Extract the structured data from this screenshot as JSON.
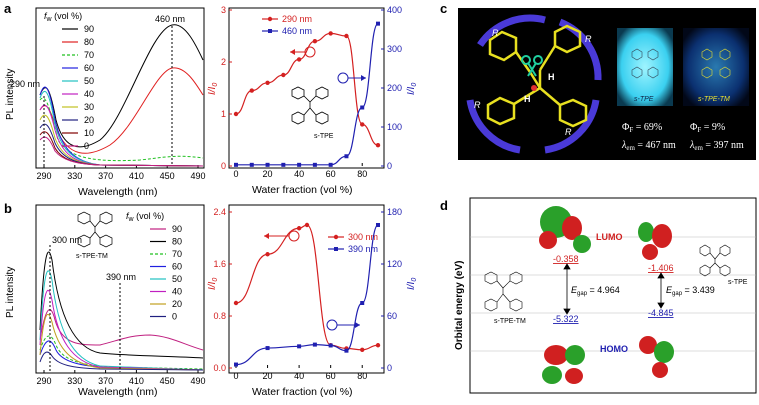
{
  "panels": {
    "a": {
      "letter": "a",
      "spectra": {
        "xlabel": "Wavelength (nm)",
        "ylabel": "PL intensity",
        "xticks": [
          "290",
          "330",
          "370",
          "410",
          "450",
          "490"
        ],
        "legend_title": "f",
        "legend_title_sub": "w",
        "legend_title_unit": " (vol %)",
        "legend": [
          {
            "label": "90",
            "color": "#000000",
            "dash": ""
          },
          {
            "label": "80",
            "color": "#e02020",
            "dash": ""
          },
          {
            "label": "70",
            "color": "#20c020",
            "dash": "3,2"
          },
          {
            "label": "60",
            "color": "#2020e0",
            "dash": ""
          },
          {
            "label": "50",
            "color": "#20c0c0",
            "dash": ""
          },
          {
            "label": "40",
            "color": "#c020c0",
            "dash": ""
          },
          {
            "label": "30",
            "color": "#c0c020",
            "dash": ""
          },
          {
            "label": "20",
            "color": "#202080",
            "dash": ""
          },
          {
            "label": "10",
            "color": "#800000",
            "dash": ""
          },
          {
            "label": "0",
            "color": "#c02080",
            "dash": ""
          }
        ],
        "annotations": [
          "290 nm",
          "460 nm"
        ]
      },
      "ratio": {
        "xlabel": "Water fraction (vol %)",
        "ylabel_left": "I/I",
        "ylabel_right": "I/I",
        "ylabel_sub": "0",
        "xticks": [
          "0",
          "20",
          "40",
          "60",
          "80"
        ],
        "yticks_left": [
          "0",
          "1",
          "2",
          "3"
        ],
        "yticks_right": [
          "0",
          "100",
          "200",
          "300",
          "400"
        ],
        "series": [
          {
            "name": "290 nm",
            "color": "#d42020",
            "x": [
              0,
              10,
              20,
              30,
              40,
              50,
              60,
              70,
              80,
              90
            ],
            "y": [
              1.0,
              1.45,
              1.6,
              1.75,
              2.05,
              2.4,
              2.55,
              2.5,
              0.8,
              0.4
            ]
          },
          {
            "name": "460 nm",
            "color": "#2020b0",
            "x": [
              0,
              10,
              20,
              30,
              40,
              50,
              60,
              70,
              80,
              90
            ],
            "y": [
              3,
              3,
              3,
              3,
              3,
              3,
              3,
              25,
              150,
              365
            ]
          }
        ],
        "molecule_label": "s-TPE"
      }
    },
    "b": {
      "letter": "b",
      "spectra": {
        "xlabel": "Wavelength (nm)",
        "ylabel": "PL intensity",
        "xticks": [
          "290",
          "330",
          "370",
          "410",
          "450",
          "490"
        ],
        "legend_title": "f",
        "legend_title_sub": "w",
        "legend_title_unit": " (vol %)",
        "legend": [
          {
            "label": "90",
            "color": "#c02080",
            "dash": ""
          },
          {
            "label": "80",
            "color": "#000000",
            "dash": ""
          },
          {
            "label": "70",
            "color": "#20c020",
            "dash": "3,2"
          },
          {
            "label": "60",
            "color": "#2020e0",
            "dash": ""
          },
          {
            "label": "50",
            "color": "#20c0c0",
            "dash": ""
          },
          {
            "label": "40",
            "color": "#c020c0",
            "dash": ""
          },
          {
            "label": "20",
            "color": "#c0a020",
            "dash": ""
          },
          {
            "label": "0",
            "color": "#202080",
            "dash": ""
          }
        ],
        "annotations": [
          "300 nm",
          "390 nm"
        ],
        "molecule_label": "s-TPE-TM"
      },
      "ratio": {
        "xlabel": "Water fraction (vol %)",
        "ylabel_left": "I/I",
        "ylabel_right": "I/I",
        "ylabel_sub": "0",
        "xticks": [
          "0",
          "20",
          "40",
          "60",
          "80"
        ],
        "yticks_left": [
          "0.0",
          "0.8",
          "1.6",
          "2.4"
        ],
        "yticks_right": [
          "0",
          "60",
          "120",
          "180"
        ],
        "series": [
          {
            "name": "300 nm",
            "color": "#d42020",
            "x": [
              0,
              20,
              40,
              45,
              60,
              70,
              80,
              90
            ],
            "y": [
              1.0,
              1.75,
              2.15,
              2.2,
              0.35,
              0.3,
              0.28,
              0.35
            ]
          },
          {
            "name": "390 nm",
            "color": "#2020b0",
            "x": [
              0,
              20,
              40,
              50,
              60,
              70,
              80,
              90
            ],
            "y": [
              4,
              23,
              25,
              27,
              26,
              20,
              75,
              165
            ]
          }
        ]
      }
    },
    "c": {
      "letter": "c",
      "r_label": "R",
      "h_label": "H",
      "photo1_label": "s-TPE",
      "photo2_label": "s-TPE-TM",
      "phi1": "Φ",
      "phi_sub": "F",
      "phi1_value": " = 69%",
      "lambda1": "λ",
      "lambda_sub": "em",
      "lambda1_value": " = 467 nm",
      "phi2_value": " = 9%",
      "lambda2_value": " = 397 nm"
    },
    "d": {
      "letter": "d",
      "ylabel": "Orbital energy (eV)",
      "lumo_label": "LUMO",
      "homo_label": "HOMO",
      "left_lumo": "-0.358",
      "left_homo": "-5.322",
      "right_lumo": "-1.406",
      "right_homo": "-4.845",
      "left_gap_label": "E",
      "gap_sub": "gap",
      "left_gap_value": " = 4.964",
      "right_gap_value": " = 3.439",
      "left_molecule": "s-TPE-TM",
      "right_molecule": "s-TPE"
    }
  }
}
